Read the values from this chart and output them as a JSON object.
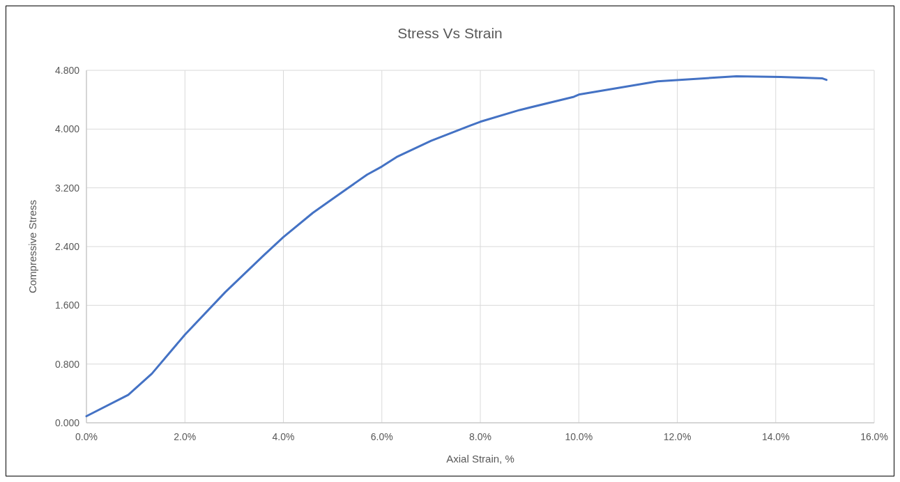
{
  "chart_data": {
    "type": "line",
    "title": "Stress Vs Strain",
    "xlabel": "Axial Strain, %",
    "ylabel": "Compressive Stress",
    "x": [
      0.0,
      0.85,
      1.33,
      2.0,
      2.82,
      3.6,
      4.0,
      4.6,
      5.0,
      5.7,
      6.0,
      6.3,
      7.0,
      7.8,
      8.0,
      8.8,
      9.9,
      10.0,
      11.6,
      13.2,
      14.1,
      14.95,
      15.03
    ],
    "series": [
      {
        "color": "#4472c4",
        "values": [
          0.09,
          0.38,
          0.67,
          1.2,
          1.78,
          2.28,
          2.53,
          2.86,
          3.05,
          3.38,
          3.49,
          3.62,
          3.84,
          4.05,
          4.1,
          4.26,
          4.44,
          4.47,
          4.65,
          4.72,
          4.71,
          4.69,
          4.67
        ]
      }
    ],
    "xlim": [
      0,
      16
    ],
    "ylim": [
      0,
      4.8
    ],
    "xticks": [
      {
        "value": 0,
        "label": "0.0%"
      },
      {
        "value": 2,
        "label": "2.0%"
      },
      {
        "value": 4,
        "label": "4.0%"
      },
      {
        "value": 6,
        "label": "6.0%"
      },
      {
        "value": 8,
        "label": "8.0%"
      },
      {
        "value": 10,
        "label": "10.0%"
      },
      {
        "value": 12,
        "label": "12.0%"
      },
      {
        "value": 14,
        "label": "14.0%"
      },
      {
        "value": 16,
        "label": "16.0%"
      }
    ],
    "yticks": [
      {
        "value": 0,
        "label": "0.000"
      },
      {
        "value": 0.8,
        "label": "0.800"
      },
      {
        "value": 1.6,
        "label": "1.600"
      },
      {
        "value": 2.4,
        "label": "2.400"
      },
      {
        "value": 3.2,
        "label": "3.200"
      },
      {
        "value": 4,
        "label": "4.000"
      },
      {
        "value": 4.8,
        "label": "4.800"
      }
    ],
    "grid": true,
    "marker": "none",
    "line_style": "solid"
  }
}
